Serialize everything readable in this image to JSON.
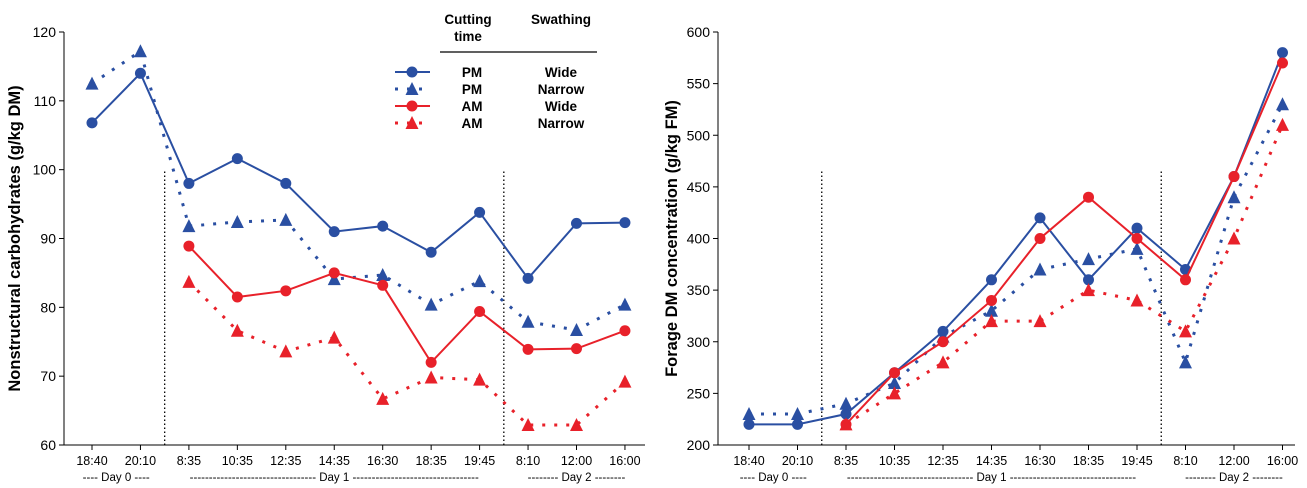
{
  "chart_data": [
    {
      "type": "line",
      "ylabel": "Nonstructural carbohydrates (g/kg DM)",
      "ylim": [
        60,
        120
      ],
      "yticks": [
        60,
        70,
        80,
        90,
        100,
        110,
        120
      ],
      "categories": [
        "18:40",
        "20:10",
        "8:35",
        "10:35",
        "12:35",
        "14:35",
        "16:30",
        "18:35",
        "19:45",
        "8:10",
        "12:00",
        "16:00"
      ],
      "day_labels": [
        {
          "text": "---- Day 0 ----",
          "from": 0,
          "to": 1
        },
        {
          "text": "--------------------------------- Day 1 ---------------------------------",
          "from": 2,
          "to": 8
        },
        {
          "text": "-------- Day 2 --------",
          "from": 9,
          "to": 11
        }
      ],
      "dividers_after": [
        1,
        8
      ],
      "legend": {
        "headers": [
          "Cutting time",
          "Swathing"
        ],
        "header_lines": [
          [
            "Cutting",
            "time"
          ],
          [
            "Swathing"
          ]
        ],
        "rows": [
          {
            "cutting": "PM",
            "swathing": "Wide"
          },
          {
            "cutting": "PM",
            "swathing": "Narrow"
          },
          {
            "cutting": "AM",
            "swathing": "Wide"
          },
          {
            "cutting": "AM",
            "swathing": "Narrow"
          }
        ]
      },
      "series": [
        {
          "color": "#2a4fa2",
          "dash": "solid",
          "marker": "circle",
          "values": [
            106.8,
            114.0,
            98.0,
            101.6,
            98.0,
            91.0,
            91.8,
            88.0,
            93.8,
            84.2,
            92.2,
            92.3
          ]
        },
        {
          "color": "#2a4fa2",
          "dash": "dotted",
          "marker": "triangle",
          "values": [
            112.5,
            117.2,
            91.8,
            92.4,
            92.7,
            84.1,
            84.7,
            80.4,
            83.8,
            77.9,
            76.7,
            80.4
          ]
        },
        {
          "color": "#e8212a",
          "dash": "solid",
          "marker": "circle",
          "values": [
            null,
            null,
            88.9,
            81.5,
            82.4,
            85.0,
            83.2,
            72.0,
            79.4,
            73.9,
            74.0,
            76.6
          ]
        },
        {
          "color": "#e8212a",
          "dash": "dotted",
          "marker": "triangle",
          "values": [
            null,
            null,
            83.7,
            76.6,
            73.6,
            75.6,
            66.7,
            69.8,
            69.5,
            62.9,
            62.9,
            69.2
          ]
        }
      ]
    },
    {
      "type": "line",
      "ylabel": "Forage DM concentration (g/kg FM)",
      "ylim": [
        200,
        600
      ],
      "yticks": [
        200,
        250,
        300,
        350,
        400,
        450,
        500,
        550,
        600
      ],
      "categories": [
        "18:40",
        "20:10",
        "8:35",
        "10:35",
        "12:35",
        "14:35",
        "16:30",
        "18:35",
        "19:45",
        "8:10",
        "12:00",
        "16:00"
      ],
      "day_labels": [
        {
          "text": "---- Day 0 ----",
          "from": 0,
          "to": 1
        },
        {
          "text": "--------------------------------- Day 1 ---------------------------------",
          "from": 2,
          "to": 8
        },
        {
          "text": "-------- Day 2 --------",
          "from": 9,
          "to": 11
        }
      ],
      "dividers_after": [
        1,
        8
      ],
      "series": [
        {
          "color": "#2a4fa2",
          "dash": "solid",
          "marker": "circle",
          "values": [
            220,
            220,
            230,
            270,
            310,
            360,
            420,
            360,
            410,
            370,
            460,
            580
          ]
        },
        {
          "color": "#2a4fa2",
          "dash": "dotted",
          "marker": "triangle",
          "values": [
            230,
            230,
            240,
            260,
            305,
            330,
            370,
            380,
            390,
            280,
            440,
            530
          ]
        },
        {
          "color": "#e8212a",
          "dash": "solid",
          "marker": "circle",
          "values": [
            null,
            null,
            220,
            270,
            300,
            340,
            400,
            440,
            400,
            360,
            460,
            570
          ]
        },
        {
          "color": "#e8212a",
          "dash": "dotted",
          "marker": "triangle",
          "values": [
            null,
            null,
            220,
            250,
            280,
            320,
            320,
            350,
            340,
            310,
            400,
            510
          ]
        }
      ]
    }
  ]
}
